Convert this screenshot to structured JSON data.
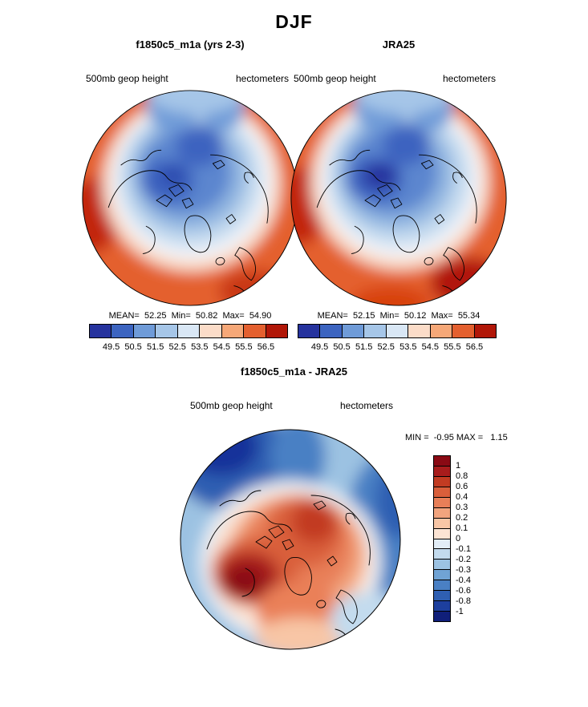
{
  "title": "DJF",
  "panels": {
    "model": {
      "title": "f1850c5_m1a (yrs 2-3)",
      "field_label": "500mb geop height",
      "units_label": "hectometers",
      "stats_line": "MEAN=  52.25  Min=  50.82  Max=  54.90"
    },
    "obs": {
      "title": "JRA25",
      "field_label": "500mb geop height",
      "units_label": "hectometers",
      "stats_line": "MEAN=  52.15  Min=  50.12  Max=  55.34"
    },
    "diff": {
      "title": "f1850c5_m1a - JRA25",
      "field_label": "500mb geop height",
      "units_label": "hectometers",
      "minmax_line": "MIN =  -0.95 MAX =   1.15"
    }
  },
  "chart_data": [
    {
      "type": "heatmap",
      "subtype": "filled_contour_polar_map",
      "projection": "north_polar_stereographic",
      "season": "DJF",
      "title": "f1850c5_m1a (yrs 2-3)",
      "variable": "500mb geop height",
      "units": "hectometers",
      "stats": {
        "mean": 52.25,
        "min": 50.82,
        "max": 54.9
      },
      "contour_levels": [
        49.5,
        50.5,
        51.5,
        52.5,
        53.5,
        54.5,
        55.5,
        56.5
      ],
      "palette": [
        "#26339e",
        "#3c64c0",
        "#6f9bd8",
        "#a6c6e8",
        "#d9e7f5",
        "#fbdcc8",
        "#f6a878",
        "#e4602f",
        "#b11708"
      ],
      "legend_position": "bottom"
    },
    {
      "type": "heatmap",
      "subtype": "filled_contour_polar_map",
      "projection": "north_polar_stereographic",
      "season": "DJF",
      "title": "JRA25",
      "variable": "500mb geop height",
      "units": "hectometers",
      "stats": {
        "mean": 52.15,
        "min": 50.12,
        "max": 55.34
      },
      "contour_levels": [
        49.5,
        50.5,
        51.5,
        52.5,
        53.5,
        54.5,
        55.5,
        56.5
      ],
      "palette": [
        "#26339e",
        "#3c64c0",
        "#6f9bd8",
        "#a6c6e8",
        "#d9e7f5",
        "#fbdcc8",
        "#f6a878",
        "#e4602f",
        "#b11708"
      ],
      "legend_position": "bottom"
    },
    {
      "type": "heatmap",
      "subtype": "filled_contour_polar_map",
      "projection": "north_polar_stereographic",
      "season": "DJF",
      "title": "f1850c5_m1a - JRA25",
      "variable": "500mb geop height",
      "units": "hectometers",
      "stats": {
        "min": -0.95,
        "max": 1.15
      },
      "contour_levels": [
        -1,
        -0.8,
        -0.6,
        -0.4,
        -0.3,
        -0.2,
        -0.1,
        0,
        0.1,
        0.2,
        0.3,
        0.4,
        0.6,
        0.8,
        1
      ],
      "palette_top_to_bottom": [
        "#8a0a14",
        "#a81c1c",
        "#c23b22",
        "#d95f3b",
        "#e87f58",
        "#f2a47e",
        "#f8c6a6",
        "#fce4d4",
        "#e2edf7",
        "#c3dbee",
        "#9cc2e2",
        "#70a3d4",
        "#4a80c4",
        "#2f5fb2",
        "#1d3f9e",
        "#101f7a"
      ],
      "legend_position": "right"
    }
  ]
}
